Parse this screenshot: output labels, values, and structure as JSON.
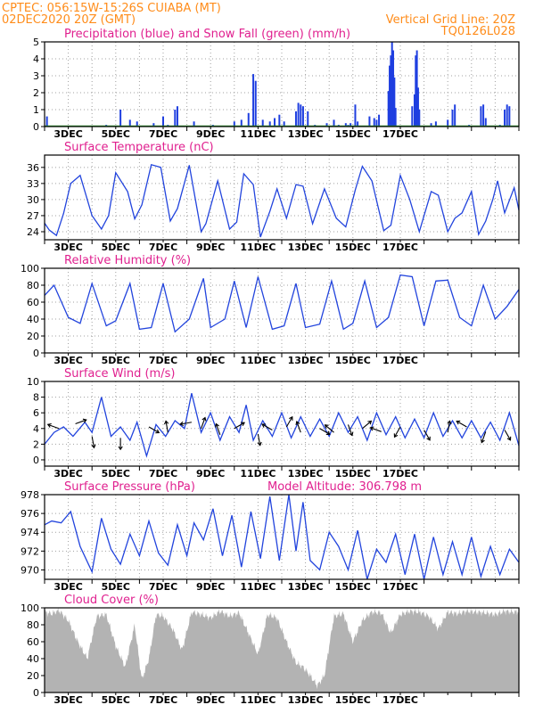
{
  "header": {
    "line1_left": "CPTEC:   056:15W-15:26S   CUIABA (MT)",
    "line2_left": "02DEC2020 20Z (GMT)",
    "line2_right": "Vertical Grid Line: 20Z",
    "line3_right": "TQ0126L028"
  },
  "colors": {
    "header": "#ff8c1a",
    "panel_title": "#e0208f",
    "precip": "#1f3fe0",
    "snow": "#2e9e2e",
    "line": "#2244dd",
    "cloud": "#b3b3b3"
  },
  "x_axis": {
    "start": "02DEC2020 20Z",
    "end": "17DEC2020",
    "ticks": [
      "3DEC",
      "5DEC",
      "7DEC",
      "9DEC",
      "11DEC",
      "13DEC",
      "15DEC",
      "17DEC"
    ]
  },
  "chart_data": [
    {
      "id": "precip",
      "type": "bar",
      "title": "Precipitation (blue) and Snow Fall (green) (mm/h)",
      "ylim": [
        0,
        5
      ],
      "yticks": [
        0,
        1,
        2,
        3,
        4,
        5
      ],
      "grid": true,
      "series": [
        {
          "name": "Precipitation",
          "color": "#1f3fe0",
          "points": [
            [
              0.1,
              0.6
            ],
            [
              1.7,
              0.05
            ],
            [
              2.0,
              0.05
            ],
            [
              2.6,
              0.1
            ],
            [
              3.0,
              0.05
            ],
            [
              3.2,
              1.0
            ],
            [
              3.6,
              0.4
            ],
            [
              3.9,
              0.3
            ],
            [
              4.6,
              0.2
            ],
            [
              5.0,
              0.6
            ],
            [
              5.2,
              0.1
            ],
            [
              5.5,
              1.0
            ],
            [
              5.6,
              1.2
            ],
            [
              6.3,
              0.3
            ],
            [
              7.1,
              0.1
            ],
            [
              8.0,
              0.3
            ],
            [
              8.3,
              0.4
            ],
            [
              8.6,
              0.8
            ],
            [
              8.8,
              3.1
            ],
            [
              8.9,
              2.7
            ],
            [
              9.2,
              0.4
            ],
            [
              9.5,
              0.3
            ],
            [
              9.7,
              0.5
            ],
            [
              9.9,
              0.7
            ],
            [
              10.1,
              0.3
            ],
            [
              10.6,
              0.9
            ],
            [
              10.7,
              1.4
            ],
            [
              10.8,
              1.3
            ],
            [
              10.9,
              1.2
            ],
            [
              11.1,
              0.9
            ],
            [
              11.4,
              0.1
            ],
            [
              11.9,
              0.2
            ],
            [
              12.2,
              0.4
            ],
            [
              12.4,
              0.1
            ],
            [
              12.7,
              0.2
            ],
            [
              12.8,
              0.1
            ],
            [
              12.9,
              0.2
            ],
            [
              13.1,
              1.3
            ],
            [
              13.2,
              0.3
            ],
            [
              13.7,
              0.6
            ],
            [
              13.9,
              0.5
            ],
            [
              14.0,
              0.4
            ],
            [
              14.1,
              0.7
            ],
            [
              14.5,
              2.1
            ],
            [
              14.55,
              3.6
            ],
            [
              14.6,
              4.2
            ],
            [
              14.65,
              5.0
            ],
            [
              14.7,
              4.5
            ],
            [
              14.75,
              2.9
            ],
            [
              14.8,
              1.1
            ],
            [
              15.5,
              1.2
            ],
            [
              15.6,
              1.9
            ],
            [
              15.65,
              4.2
            ],
            [
              15.7,
              4.5
            ],
            [
              15.75,
              2.3
            ],
            [
              15.8,
              1.0
            ],
            [
              16.3,
              0.2
            ],
            [
              16.5,
              0.3
            ],
            [
              17.0,
              0.4
            ],
            [
              17.2,
              1.0
            ],
            [
              17.3,
              1.3
            ],
            [
              17.9,
              0.1
            ],
            [
              18.4,
              1.2
            ],
            [
              18.5,
              1.3
            ],
            [
              18.6,
              0.5
            ],
            [
              19.2,
              0.1
            ],
            [
              19.4,
              1.0
            ],
            [
              19.5,
              1.3
            ],
            [
              19.6,
              1.2
            ]
          ]
        },
        {
          "name": "Snow Fall",
          "color": "#2e9e2e",
          "points": []
        }
      ]
    },
    {
      "id": "temp",
      "type": "line",
      "title": "Surface Temperature (nC)",
      "ylim": [
        22.5,
        38.3
      ],
      "yticks": [
        24,
        27,
        30,
        33,
        36
      ],
      "grid": true,
      "x": [
        0,
        0.2,
        0.5,
        0.8,
        1.1,
        1.5,
        2.0,
        2.4,
        2.7,
        3.0,
        3.5,
        3.8,
        4.1,
        4.5,
        4.9,
        5.3,
        5.6,
        6.1,
        6.6,
        6.8,
        7.3,
        7.8,
        8.1,
        8.4,
        8.8,
        9.1,
        9.5,
        9.8,
        10.2,
        10.6,
        10.9,
        11.3,
        11.8,
        12.3,
        12.7,
        13.1,
        13.4,
        13.8,
        14.3,
        14.6,
        15.0,
        15.4,
        15.8,
        16.3,
        16.6,
        17.0,
        17.3,
        17.6,
        18.0,
        18.3,
        18.6,
        18.9,
        19.1,
        19.4,
        19.8,
        20.0
      ],
      "y": [
        25.6,
        24.3,
        23.3,
        27.4,
        33.0,
        34.5,
        27.0,
        24.5,
        27.0,
        35.0,
        31.5,
        26.4,
        29.0,
        36.5,
        36.0,
        26.0,
        28.3,
        36.4,
        24.0,
        25.5,
        33.5,
        24.5,
        25.8,
        34.8,
        32.8,
        23.0,
        27.8,
        32.0,
        26.5,
        32.8,
        32.5,
        25.5,
        32.0,
        26.5,
        24.9,
        31.8,
        36.2,
        33.5,
        24.2,
        25.2,
        34.5,
        30.0,
        24.0,
        31.5,
        30.8,
        24.0,
        26.5,
        27.5,
        31.5,
        23.5,
        26.0,
        30.0,
        33.5,
        27.5,
        32.2,
        28.0
      ]
    },
    {
      "id": "rh",
      "type": "line",
      "title": "Relative Humidity (%)",
      "ylim": [
        0,
        100
      ],
      "yticks": [
        0,
        20,
        40,
        60,
        80,
        100
      ],
      "grid": true,
      "x": [
        0,
        0.4,
        1.0,
        1.5,
        2.0,
        2.6,
        3.0,
        3.6,
        4.0,
        4.5,
        5.0,
        5.5,
        6.1,
        6.7,
        7.0,
        7.6,
        8.0,
        8.5,
        9.0,
        9.6,
        10.1,
        10.6,
        11.0,
        11.6,
        12.1,
        12.6,
        13.0,
        13.5,
        14.0,
        14.5,
        15.0,
        15.5,
        16.0,
        16.5,
        17.0,
        17.5,
        18.0,
        18.5,
        19.0,
        19.5,
        20.0
      ],
      "y": [
        68,
        80,
        42,
        35,
        82,
        32,
        38,
        82,
        28,
        30,
        82,
        25,
        40,
        88,
        30,
        40,
        85,
        30,
        90,
        28,
        32,
        82,
        30,
        34,
        85,
        28,
        35,
        85,
        30,
        42,
        92,
        90,
        32,
        85,
        86,
        42,
        32,
        80,
        40,
        55,
        75
      ]
    },
    {
      "id": "wind",
      "type": "line",
      "title": "Surface Wind (m/s)",
      "ylim": [
        -0.8,
        10
      ],
      "yticks": [
        0,
        2,
        4,
        6,
        8,
        10
      ],
      "grid": true,
      "x": [
        0,
        0.4,
        0.8,
        1.2,
        1.7,
        2.0,
        2.4,
        2.8,
        3.2,
        3.6,
        3.9,
        4.3,
        4.7,
        5.1,
        5.5,
        5.9,
        6.2,
        6.6,
        7.0,
        7.4,
        7.8,
        8.2,
        8.5,
        8.8,
        9.2,
        9.6,
        10.0,
        10.4,
        10.8,
        11.2,
        11.6,
        12.0,
        12.4,
        12.8,
        13.2,
        13.6,
        14.0,
        14.4,
        14.8,
        15.2,
        15.6,
        16.0,
        16.4,
        16.8,
        17.2,
        17.6,
        18.0,
        18.4,
        18.8,
        19.2,
        19.6,
        20.0
      ],
      "y": [
        2.0,
        3.5,
        4.2,
        3.0,
        4.8,
        3.5,
        8.0,
        3.0,
        4.2,
        2.5,
        4.8,
        0.5,
        4.5,
        3.0,
        5.0,
        4.0,
        8.5,
        3.5,
        6.0,
        2.5,
        5.5,
        3.5,
        7.0,
        2.5,
        5.0,
        3.0,
        6.0,
        2.8,
        5.5,
        3.0,
        5.2,
        3.0,
        6.0,
        3.5,
        5.5,
        2.5,
        6.0,
        3.2,
        5.5,
        2.8,
        5.2,
        2.8,
        6.0,
        3.0,
        5.0,
        2.8,
        5.0,
        2.8,
        4.8,
        2.5,
        6.0,
        1.8
      ],
      "vectors": [
        {
          "x": 0.6,
          "y": 4.0,
          "angle": 200
        },
        {
          "x": 1.3,
          "y": 4.6,
          "angle": 340
        },
        {
          "x": 2.0,
          "y": 3.0,
          "angle": 80
        },
        {
          "x": 3.2,
          "y": 2.8,
          "angle": 90
        },
        {
          "x": 4.4,
          "y": 4.2,
          "angle": 30
        },
        {
          "x": 5.2,
          "y": 3.5,
          "angle": 260
        },
        {
          "x": 6.2,
          "y": 4.8,
          "angle": 170
        },
        {
          "x": 6.6,
          "y": 4.0,
          "angle": 290
        },
        {
          "x": 7.4,
          "y": 3.2,
          "angle": 250
        },
        {
          "x": 8.0,
          "y": 4.0,
          "angle": 330
        },
        {
          "x": 9.0,
          "y": 3.3,
          "angle": 80
        },
        {
          "x": 9.6,
          "y": 3.8,
          "angle": 210
        },
        {
          "x": 10.2,
          "y": 4.2,
          "angle": 300
        },
        {
          "x": 10.8,
          "y": 3.5,
          "angle": 250
        },
        {
          "x": 11.6,
          "y": 4.0,
          "angle": 30
        },
        {
          "x": 12.2,
          "y": 3.5,
          "angle": 220
        },
        {
          "x": 12.8,
          "y": 4.5,
          "angle": 70
        },
        {
          "x": 13.4,
          "y": 4.0,
          "angle": 320
        },
        {
          "x": 14.2,
          "y": 3.6,
          "angle": 200
        },
        {
          "x": 15.0,
          "y": 4.2,
          "angle": 120
        },
        {
          "x": 16.0,
          "y": 3.8,
          "angle": 60
        },
        {
          "x": 17.0,
          "y": 3.5,
          "angle": 280
        },
        {
          "x": 17.8,
          "y": 4.2,
          "angle": 210
        },
        {
          "x": 18.6,
          "y": 3.6,
          "angle": 110
        },
        {
          "x": 19.4,
          "y": 3.8,
          "angle": 60
        }
      ]
    },
    {
      "id": "pressure",
      "type": "line",
      "title": "Surface Pressure (hPa)",
      "annotation": "Model Altitude: 306.798  m",
      "ylim": [
        969,
        978
      ],
      "yticks": [
        970,
        972,
        974,
        976,
        978
      ],
      "grid": true,
      "x": [
        0,
        0.3,
        0.7,
        1.1,
        1.5,
        2.0,
        2.4,
        2.8,
        3.2,
        3.6,
        4.0,
        4.4,
        4.8,
        5.2,
        5.6,
        6.0,
        6.3,
        6.7,
        7.1,
        7.5,
        7.9,
        8.3,
        8.7,
        9.1,
        9.5,
        9.9,
        10.3,
        10.6,
        10.9,
        11.2,
        11.6,
        12.0,
        12.4,
        12.8,
        13.2,
        13.6,
        14.0,
        14.4,
        14.8,
        15.2,
        15.6,
        16.0,
        16.4,
        16.8,
        17.2,
        17.6,
        18.0,
        18.4,
        18.8,
        19.2,
        19.6,
        20.0
      ],
      "y": [
        974.8,
        975.2,
        975.0,
        976.2,
        972.5,
        969.8,
        975.5,
        972.2,
        970.6,
        973.8,
        971.5,
        975.2,
        971.8,
        970.5,
        974.8,
        971.5,
        975.0,
        973.2,
        976.5,
        971.5,
        975.8,
        970.3,
        976.2,
        971.2,
        977.8,
        971.0,
        978.0,
        972.0,
        977.2,
        971.0,
        970.0,
        974.0,
        972.5,
        970.0,
        974.2,
        969.0,
        972.2,
        970.8,
        973.8,
        969.5,
        973.8,
        969.0,
        973.5,
        969.5,
        973.0,
        969.5,
        973.5,
        969.3,
        972.5,
        969.5,
        972.2,
        970.8
      ]
    },
    {
      "id": "cloud",
      "type": "area",
      "title": "Cloud Cover (%)",
      "ylim": [
        0,
        100
      ],
      "yticks": [
        0,
        20,
        40,
        60,
        80,
        100
      ],
      "grid": false,
      "x": [
        0,
        0.3,
        0.6,
        1.0,
        1.4,
        1.8,
        2.2,
        2.6,
        3.0,
        3.4,
        3.8,
        4.1,
        4.4,
        4.7,
        5.0,
        5.4,
        5.8,
        6.2,
        6.6,
        7.0,
        7.4,
        7.8,
        8.2,
        8.6,
        9.0,
        9.4,
        9.8,
        10.2,
        10.6,
        10.9,
        11.2,
        11.5,
        11.8,
        12.2,
        12.6,
        13.0,
        13.4,
        13.8,
        14.2,
        14.6,
        15.0,
        15.4,
        15.8,
        16.2,
        16.6,
        17.0,
        17.4,
        17.8,
        18.2,
        18.6,
        19.0,
        19.4,
        19.8,
        20.0
      ],
      "y": [
        95,
        93,
        97,
        85,
        60,
        40,
        90,
        92,
        55,
        30,
        80,
        15,
        40,
        92,
        90,
        75,
        50,
        95,
        92,
        88,
        96,
        90,
        94,
        70,
        45,
        92,
        88,
        60,
        35,
        30,
        20,
        8,
        20,
        90,
        93,
        60,
        85,
        95,
        94,
        70,
        92,
        96,
        95,
        90,
        75,
        95,
        93,
        96,
        95,
        94,
        92,
        96,
        95,
        96
      ]
    }
  ]
}
